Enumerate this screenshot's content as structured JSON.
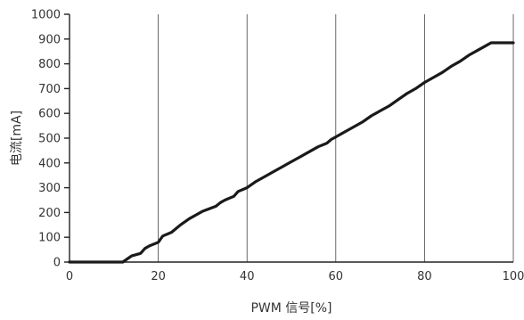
{
  "chart_data": {
    "type": "line",
    "xlabel": "PWM 信号[%]",
    "ylabel": "电流[mA]",
    "xlim": [
      0,
      100
    ],
    "ylim": [
      0,
      1000
    ],
    "x_ticks": [
      0,
      20,
      40,
      60,
      80,
      100
    ],
    "y_ticks": [
      0,
      100,
      200,
      300,
      400,
      500,
      600,
      700,
      800,
      900,
      1000
    ],
    "grid": true,
    "colors": {
      "line": "#1a1a1a",
      "grid": "#444444"
    },
    "series": [
      {
        "x": [
          0,
          12,
          14,
          16,
          17,
          18,
          20,
          21,
          23,
          25,
          27,
          30,
          33,
          34,
          35,
          37,
          38,
          40,
          42,
          44,
          46,
          48,
          50,
          52,
          54,
          56,
          58,
          59,
          60,
          62,
          64,
          66,
          68,
          70,
          72,
          74,
          76,
          78,
          80,
          82,
          84,
          86,
          88,
          90,
          92,
          94,
          95,
          100
        ],
        "y": [
          0,
          0,
          25,
          35,
          55,
          65,
          80,
          105,
          120,
          150,
          175,
          205,
          225,
          240,
          250,
          265,
          285,
          300,
          325,
          345,
          365,
          385,
          405,
          425,
          445,
          465,
          480,
          495,
          505,
          525,
          545,
          565,
          590,
          610,
          630,
          655,
          680,
          700,
          725,
          745,
          765,
          790,
          810,
          835,
          855,
          875,
          885,
          885
        ]
      }
    ]
  }
}
